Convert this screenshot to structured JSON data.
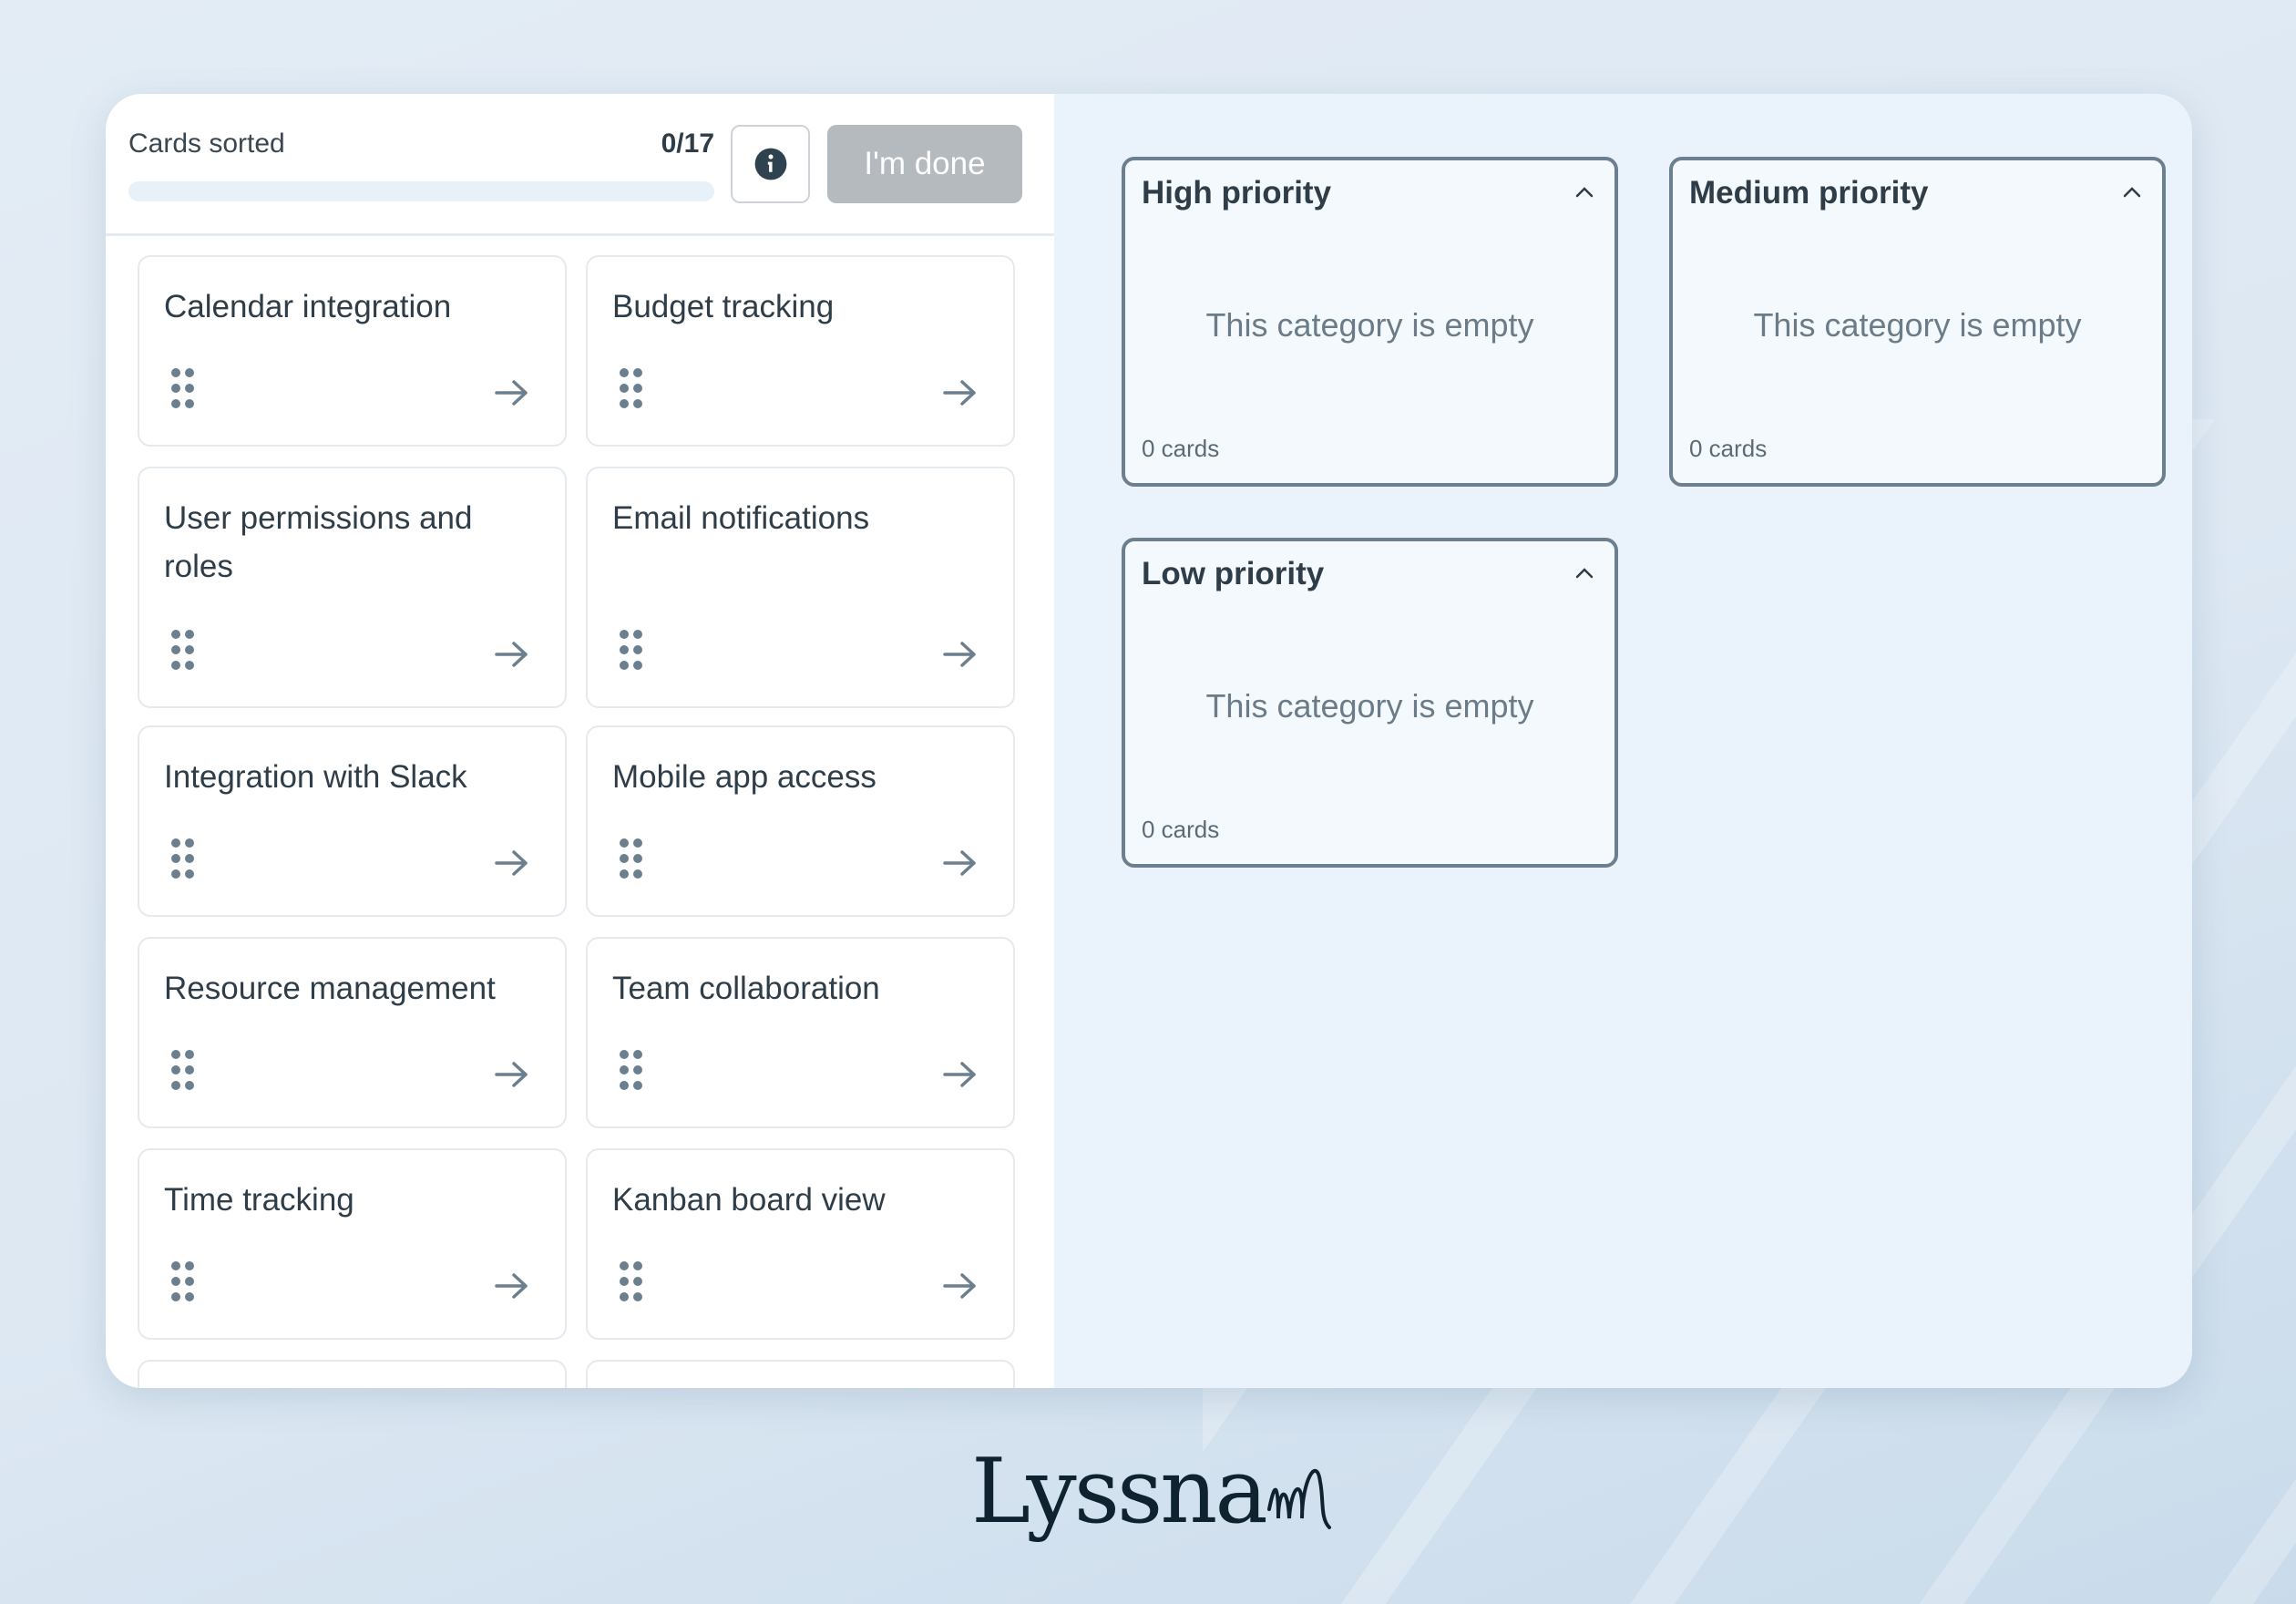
{
  "header": {
    "sorted_label": "Cards sorted",
    "sorted_count": "0/17",
    "progress_percent": 0,
    "done_label": "I'm done",
    "info_icon": "info-circle-icon"
  },
  "cards": [
    {
      "title": "Calendar integration"
    },
    {
      "title": "Budget tracking"
    },
    {
      "title": "User permissions and roles"
    },
    {
      "title": "Email notifications"
    },
    {
      "title": "Integration with Slack"
    },
    {
      "title": "Mobile app access"
    },
    {
      "title": "Resource management"
    },
    {
      "title": "Team collaboration"
    },
    {
      "title": "Time tracking"
    },
    {
      "title": "Kanban board view"
    },
    {
      "title": ""
    },
    {
      "title": ""
    }
  ],
  "categories": [
    {
      "title": "High priority",
      "empty_text": "This category is empty",
      "count": "0 cards"
    },
    {
      "title": "Medium priority",
      "empty_text": "This category is empty",
      "count": "0 cards"
    },
    {
      "title": "Low priority",
      "empty_text": "This category is empty",
      "count": "0 cards"
    }
  ],
  "brand": {
    "logo": "Lyssna"
  },
  "colors": {
    "done_button": "#b5babf",
    "category_border": "#6b7f8e",
    "text": "#2f3d48"
  }
}
